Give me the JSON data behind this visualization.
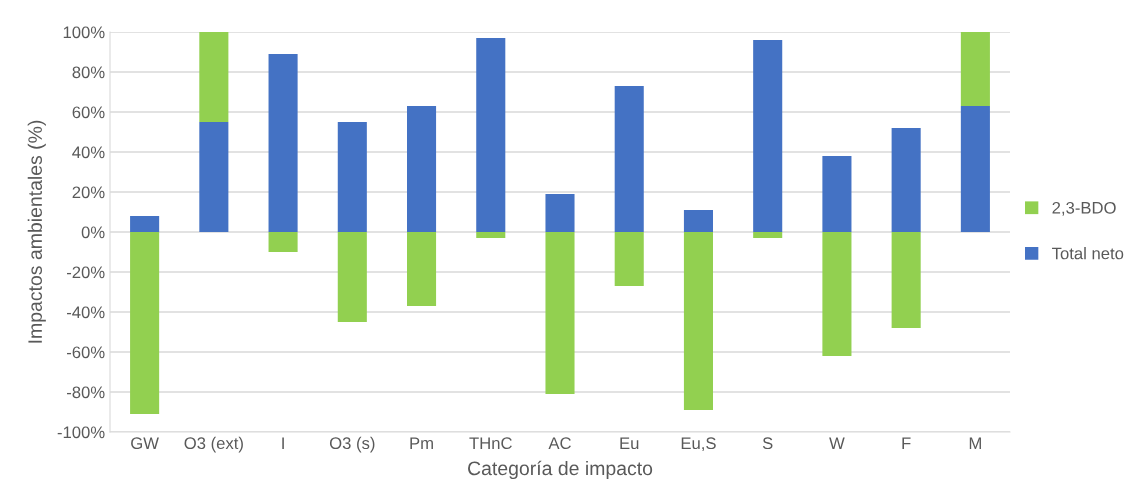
{
  "chart_data": {
    "type": "bar",
    "stacked": true,
    "xlabel": "Categoría de impacto",
    "ylabel": "Impactos ambientales (%)",
    "categories": [
      "GW",
      "O3 (ext)",
      "I",
      "O3 (s)",
      "Pm",
      "THnC",
      "AC",
      "Eu",
      "Eu,S",
      "S",
      "W",
      "F",
      "M"
    ],
    "series": [
      {
        "name": "Total neto",
        "color": "#4472c4",
        "values": [
          8,
          55,
          89,
          55,
          63,
          97,
          19,
          73,
          11,
          96,
          38,
          52,
          63
        ]
      },
      {
        "name": "2,3-BDO",
        "color": "#92d050",
        "values": [
          -91,
          45,
          -10,
          -45,
          -37,
          -3,
          -81,
          -27,
          -89,
          -3,
          -62,
          -48,
          37
        ]
      }
    ],
    "ylim": [
      -100,
      100
    ],
    "yticks": [
      {
        "value": -100,
        "label": "-100%"
      },
      {
        "value": -80,
        "label": "-80%"
      },
      {
        "value": -60,
        "label": "-60%"
      },
      {
        "value": -40,
        "label": "-40%"
      },
      {
        "value": -20,
        "label": "-20%"
      },
      {
        "value": 0,
        "label": "0%"
      },
      {
        "value": 20,
        "label": "20%"
      },
      {
        "value": 40,
        "label": "40%"
      },
      {
        "value": 60,
        "label": "60%"
      },
      {
        "value": 80,
        "label": "80%"
      },
      {
        "value": 100,
        "label": "100%"
      }
    ],
    "grid": "y",
    "legend": "right"
  }
}
